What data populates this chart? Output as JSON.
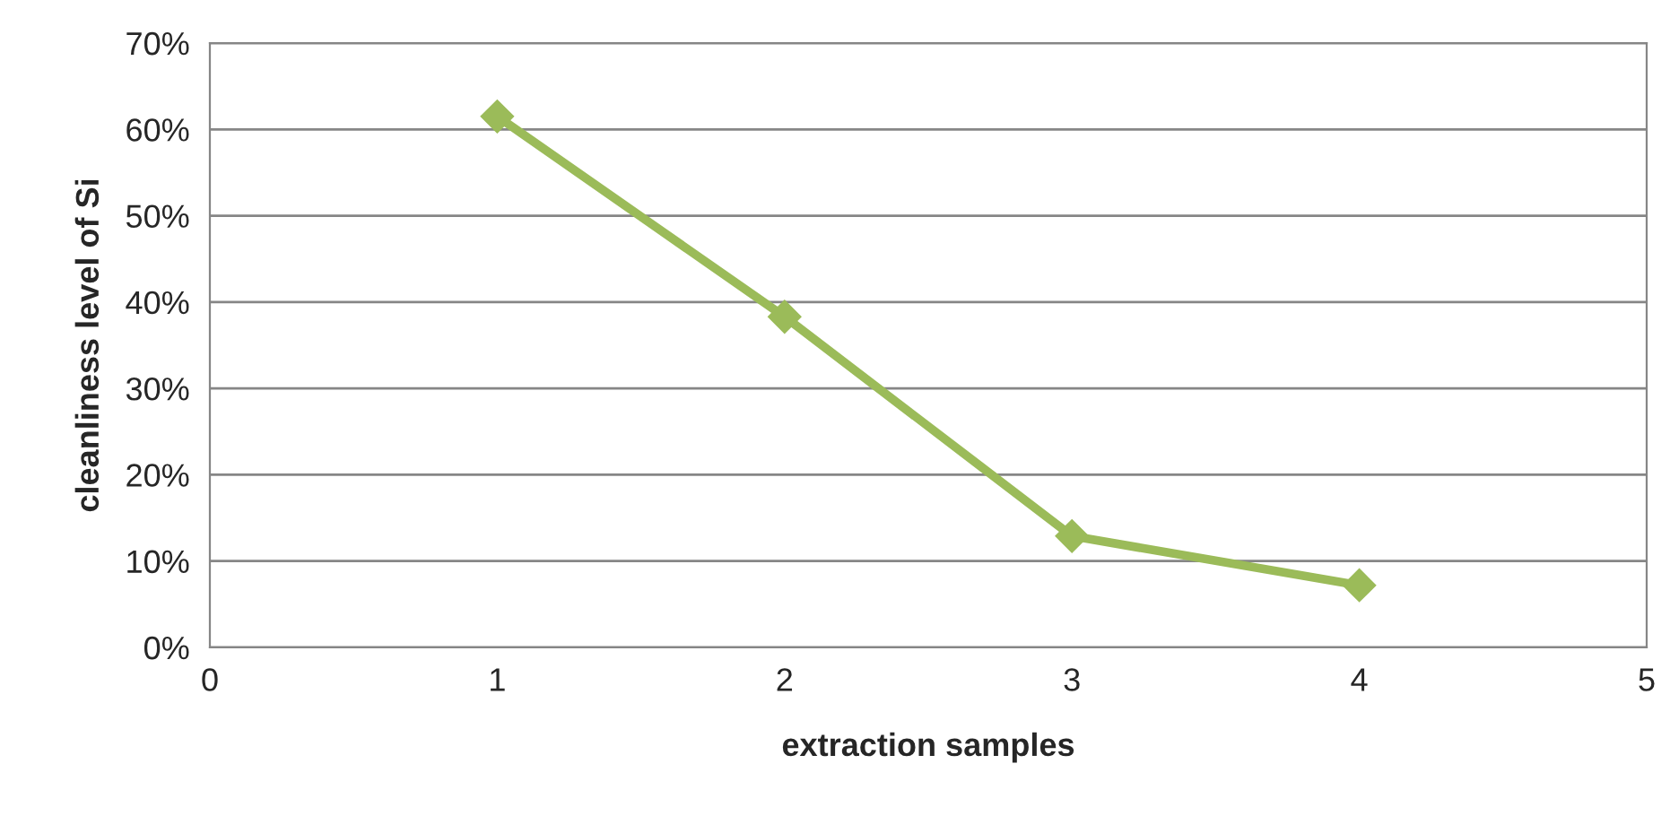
{
  "chart_data": {
    "type": "line",
    "xlabel": "extraction samples",
    "ylabel": "cleanliness level of Si",
    "x": [
      1,
      2,
      3,
      4
    ],
    "series": [
      {
        "color": "#9bbb59",
        "values": [
          61.5,
          38.3,
          12.9,
          7.2
        ]
      }
    ],
    "xlim": [
      0,
      5
    ],
    "xticks": [
      0,
      1,
      2,
      3,
      4,
      5
    ],
    "ylim": [
      0,
      70
    ],
    "yticks": [
      {
        "value": 0,
        "label": "0%"
      },
      {
        "value": 10,
        "label": "10%"
      },
      {
        "value": 20,
        "label": "20%"
      },
      {
        "value": 30,
        "label": "30%"
      },
      {
        "value": 40,
        "label": "40%"
      },
      {
        "value": 50,
        "label": "50%"
      },
      {
        "value": 60,
        "label": "60%"
      },
      {
        "value": 70,
        "label": "70%"
      }
    ],
    "grid": "y",
    "marker": "diamond",
    "line_style": "solid",
    "legend": false
  }
}
